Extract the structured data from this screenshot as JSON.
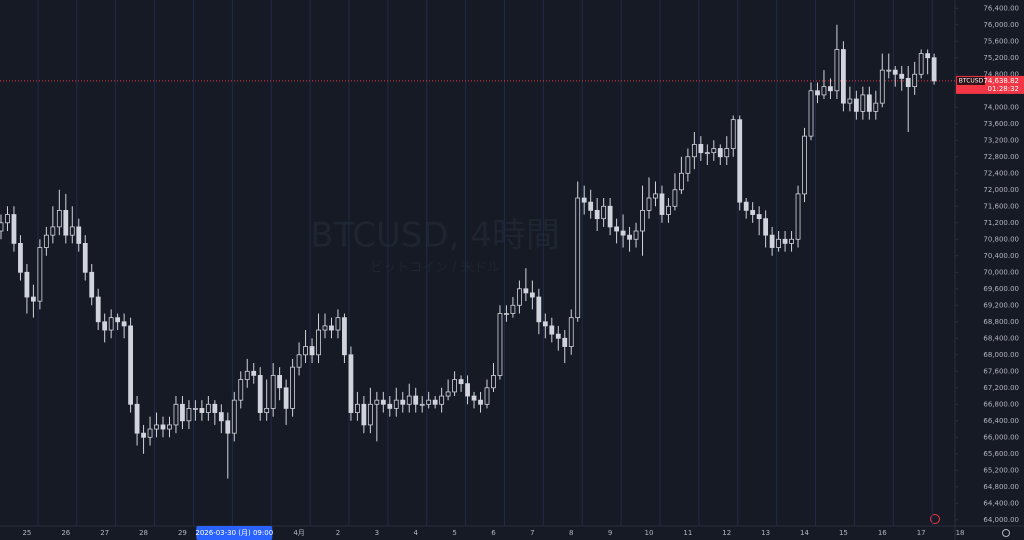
{
  "chart_data": {
    "type": "candlestick",
    "watermark": "BTCUSD, 4時間",
    "watermark_subtitle": "ビットコイン / 米ドル",
    "categories": [
      null,
      null,
      null,
      null,
      "25",
      null,
      null,
      null,
      null,
      null,
      "26",
      null,
      null,
      null,
      null,
      null,
      "27",
      null,
      null,
      null,
      null,
      null,
      "28",
      null,
      null,
      null,
      null,
      null,
      "29",
      null,
      null,
      null,
      null,
      null,
      null,
      null,
      "2026-03-30 (月)  09:00",
      null,
      null,
      null,
      null,
      null,
      null,
      null,
      null,
      null,
      "4月",
      null,
      null,
      null,
      null,
      null,
      "2",
      null,
      null,
      null,
      null,
      null,
      "3",
      null,
      null,
      null,
      null,
      null,
      "4",
      null,
      null,
      null,
      null,
      null,
      "5",
      null,
      null,
      null,
      null,
      null,
      "6",
      null,
      null,
      null,
      null,
      null,
      "7",
      null,
      null,
      null,
      null,
      null,
      "8",
      null,
      null,
      null,
      null,
      null,
      "9",
      null,
      null,
      null,
      null,
      null,
      "10",
      null,
      null,
      null,
      null,
      null,
      "11",
      null,
      null,
      null,
      null,
      null,
      "12",
      null,
      null,
      null,
      null,
      null,
      "13",
      null,
      null,
      null,
      null,
      null,
      "14",
      null,
      null,
      null,
      null,
      null,
      "15",
      null,
      null,
      null,
      null,
      null,
      "16",
      null,
      null,
      null,
      null,
      null,
      "17",
      null,
      null,
      null,
      null,
      null,
      "18"
    ],
    "open": [
      71000,
      71200,
      71400,
      70700,
      70000,
      69400,
      69300,
      70600,
      70900,
      71100,
      71500,
      70900,
      71100,
      70700,
      70000,
      69400,
      68800,
      68600,
      68900,
      68800,
      68700,
      66800,
      66100,
      66000,
      66200,
      66300,
      66200,
      66300,
      66800,
      66400,
      66700,
      66700,
      66600,
      66800,
      66600,
      66400,
      66100,
      66900,
      67400,
      67600,
      67500,
      66600,
      66700,
      67500,
      67200,
      66700,
      67700,
      68000,
      68200,
      68000,
      68600,
      68700,
      68600,
      68900,
      68000,
      66600,
      66800,
      66300,
      66800,
      66900,
      66800,
      66700,
      66900,
      66800,
      67000,
      66800,
      66800,
      66900,
      66800,
      67000,
      67100,
      67400,
      67300,
      67000,
      66900,
      66800,
      67200,
      67500,
      69000,
      69000,
      69200,
      69600,
      69500,
      69400,
      68800,
      68700,
      68500,
      68400,
      68200,
      68900,
      71800,
      71700,
      71500,
      71300,
      71600,
      71100,
      71000,
      70900,
      70800,
      71000,
      71500,
      71800,
      71900,
      71400,
      71600,
      72000,
      72400,
      72800,
      73100,
      72900,
      72900,
      73000,
      72800,
      73000,
      73700,
      71700,
      71500,
      71400,
      71300,
      70900,
      70600,
      70800,
      70700,
      70800,
      71900,
      73300,
      74400,
      74300,
      74500,
      74400,
      75400,
      74100,
      74200,
      73900,
      74300,
      73900,
      74100,
      74900,
      74900,
      74800,
      74700,
      74500,
      74800,
      75300,
      75200,
      null,
      null,
      null,
      null
    ],
    "high": [
      71400,
      71600,
      71600,
      70900,
      70200,
      69700,
      70800,
      71100,
      71600,
      72000,
      71900,
      71600,
      71300,
      70900,
      70200,
      69600,
      69000,
      69100,
      69000,
      69000,
      68900,
      67000,
      66300,
      66500,
      66600,
      66500,
      66500,
      67000,
      67000,
      66900,
      66900,
      66900,
      67000,
      66900,
      66800,
      66600,
      67100,
      67600,
      67900,
      67800,
      67700,
      67400,
      67800,
      67700,
      67400,
      67900,
      68300,
      68600,
      68400,
      69000,
      69000,
      68900,
      69100,
      69000,
      68200,
      67100,
      67000,
      67200,
      67100,
      67100,
      67000,
      67200,
      67100,
      67300,
      67200,
      67000,
      67100,
      67000,
      67200,
      67400,
      67600,
      67500,
      67500,
      67100,
      67100,
      67400,
      67800,
      69200,
      69200,
      69400,
      69800,
      70100,
      69800,
      69600,
      69000,
      68900,
      68700,
      68600,
      69100,
      72200,
      72100,
      72000,
      71800,
      71800,
      71800,
      71300,
      71400,
      71100,
      71200,
      72100,
      72300,
      72200,
      72100,
      71800,
      72400,
      72800,
      73000,
      73400,
      73300,
      73100,
      73200,
      73100,
      73300,
      73800,
      73800,
      71800,
      71700,
      71600,
      71500,
      71100,
      71000,
      71000,
      71000,
      72100,
      73500,
      74600,
      74600,
      74900,
      74700,
      76000,
      75600,
      74500,
      74400,
      74500,
      74500,
      74400,
      75300,
      75300,
      75000,
      75000,
      75000,
      75100,
      75400,
      75400,
      75300,
      null,
      null,
      null,
      null
    ],
    "low": [
      70800,
      71000,
      70500,
      69800,
      69000,
      68900,
      69100,
      70400,
      70700,
      70900,
      70700,
      70700,
      70500,
      69800,
      69200,
      68600,
      68300,
      68400,
      68600,
      68400,
      66600,
      65800,
      65600,
      65800,
      66000,
      66000,
      66000,
      66100,
      66200,
      66200,
      66400,
      66400,
      66400,
      66300,
      66100,
      65000,
      65900,
      66700,
      67200,
      67300,
      66400,
      66400,
      66500,
      66900,
      66300,
      66500,
      67500,
      67800,
      67800,
      67800,
      68400,
      68400,
      68400,
      67800,
      66400,
      66400,
      66100,
      66100,
      65900,
      66600,
      66500,
      66500,
      66600,
      66600,
      66600,
      66600,
      66700,
      66700,
      66600,
      66900,
      67000,
      67100,
      66800,
      66700,
      66600,
      66700,
      67100,
      67400,
      68800,
      68900,
      69000,
      69300,
      69100,
      68500,
      68400,
      68300,
      68100,
      67800,
      68000,
      68800,
      71400,
      71300,
      71000,
      71100,
      70900,
      70700,
      70600,
      70500,
      70600,
      70400,
      71300,
      71600,
      71200,
      71200,
      71500,
      71900,
      72200,
      72500,
      72700,
      72600,
      72700,
      72600,
      72600,
      72800,
      71500,
      71300,
      71200,
      70900,
      70600,
      70400,
      70500,
      70500,
      70500,
      70600,
      71700,
      73200,
      74100,
      74200,
      74200,
      74200,
      73900,
      73900,
      73700,
      73700,
      73700,
      73700,
      74000,
      74700,
      74500,
      74400,
      73400,
      74300,
      74700,
      74800,
      74550,
      null,
      null,
      null,
      null
    ],
    "close": [
      71200,
      71400,
      70700,
      70000,
      69400,
      69300,
      70600,
      70900,
      71100,
      71500,
      70900,
      71100,
      70700,
      70000,
      69400,
      68800,
      68600,
      68900,
      68800,
      68700,
      66800,
      66100,
      66000,
      66200,
      66300,
      66200,
      66300,
      66800,
      66400,
      66700,
      66700,
      66600,
      66800,
      66600,
      66400,
      66100,
      66900,
      67400,
      67600,
      67500,
      66600,
      66700,
      67500,
      67200,
      66700,
      67700,
      68000,
      68200,
      68000,
      68600,
      68700,
      68600,
      68900,
      68000,
      66600,
      66800,
      66300,
      66800,
      66900,
      66800,
      66700,
      66900,
      66800,
      67000,
      66800,
      66800,
      66900,
      66800,
      67000,
      67100,
      67400,
      67300,
      67000,
      66900,
      66800,
      67200,
      67500,
      69000,
      69000,
      69200,
      69600,
      69500,
      69400,
      68800,
      68700,
      68500,
      68400,
      68200,
      68900,
      71800,
      71700,
      71500,
      71300,
      71600,
      71100,
      71000,
      70900,
      70800,
      71000,
      71500,
      71800,
      71900,
      71400,
      71600,
      72000,
      72400,
      72800,
      73100,
      72900,
      72900,
      73000,
      72800,
      73000,
      73700,
      71700,
      71500,
      71400,
      71300,
      70900,
      70600,
      70800,
      70700,
      70800,
      71900,
      73300,
      74400,
      74300,
      74500,
      74400,
      75400,
      74100,
      74200,
      73900,
      74300,
      73900,
      74100,
      74900,
      74900,
      74800,
      74700,
      74500,
      74800,
      75300,
      75200,
      74638.82,
      null,
      null,
      null,
      null
    ],
    "color": "#d1d4dc",
    "ylim": [
      63850,
      76600
    ],
    "yticks": [
      {
        "value": 64000,
        "label": "64,000.00"
      },
      {
        "value": 64400,
        "label": "64,400.00"
      },
      {
        "value": 64800,
        "label": "64,800.00"
      },
      {
        "value": 65200,
        "label": "65,200.00"
      },
      {
        "value": 65600,
        "label": "65,600.00"
      },
      {
        "value": 66000,
        "label": "66,000.00"
      },
      {
        "value": 66400,
        "label": "66,400.00"
      },
      {
        "value": 66800,
        "label": "66,800.00"
      },
      {
        "value": 67200,
        "label": "67,200.00"
      },
      {
        "value": 67600,
        "label": "67,600.00"
      },
      {
        "value": 68000,
        "label": "68,000.00"
      },
      {
        "value": 68400,
        "label": "68,400.00"
      },
      {
        "value": 68800,
        "label": "68,800.00"
      },
      {
        "value": 69200,
        "label": "69,200.00"
      },
      {
        "value": 69600,
        "label": "69,600.00"
      },
      {
        "value": 70000,
        "label": "70,000.00"
      },
      {
        "value": 70400,
        "label": "70,400.00"
      },
      {
        "value": 70800,
        "label": "70,800.00"
      },
      {
        "value": 71200,
        "label": "71,200.00"
      },
      {
        "value": 71600,
        "label": "71,600.00"
      },
      {
        "value": 72000,
        "label": "72,000.00"
      },
      {
        "value": 72400,
        "label": "72,400.00"
      },
      {
        "value": 72800,
        "label": "72,800.00"
      },
      {
        "value": 73200,
        "label": "73,200.00"
      },
      {
        "value": 73600,
        "label": "73,600.00"
      },
      {
        "value": 74000,
        "label": "74,000.00"
      },
      {
        "value": 74400,
        "label": "74,400.00"
      },
      {
        "value": 74800,
        "label": "74,800.00"
      },
      {
        "value": 75200,
        "label": "75,200.00"
      },
      {
        "value": 75600,
        "label": "75,600.00"
      },
      {
        "value": 76000,
        "label": "76,000.00"
      },
      {
        "value": 76400,
        "label": "76,400.00"
      }
    ],
    "last_price": {
      "symbol": "BTCUSD",
      "value": 74638.82,
      "label": "74,638.82",
      "countdown": "01:28:32",
      "color": "#f23645"
    }
  }
}
